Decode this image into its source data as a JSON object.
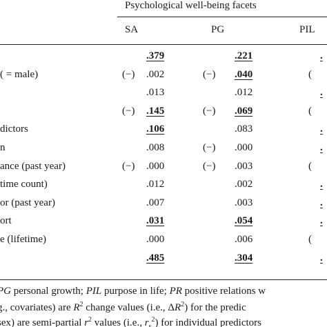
{
  "table": {
    "group_header": "Psychological well-being facets",
    "columns": [
      "SA",
      "PG",
      "PIL"
    ],
    "rows": [
      {
        "label": "",
        "sa": {
          "sign": "",
          "val": ".379",
          "bold": true
        },
        "pg": {
          "sign": "",
          "val": ".221",
          "bold": true
        },
        "pil": {
          "sign": "",
          "val": ".",
          "bold": true
        }
      },
      {
        "label": "(     = male)",
        "sa": {
          "sign": "(−)",
          "val": ".002",
          "bold": false
        },
        "pg": {
          "sign": "(−)",
          "val": ".040",
          "bold": true
        },
        "pil": {
          "sign": "(",
          "val": "",
          "bold": false
        }
      },
      {
        "label": "",
        "sa": {
          "sign": "",
          "val": ".013",
          "bold": false
        },
        "pg": {
          "sign": "",
          "val": ".012",
          "bold": false
        },
        "pil": {
          "sign": "",
          "val": ".",
          "bold": true
        }
      },
      {
        "label": "",
        "sa": {
          "sign": "(−)",
          "val": ".145",
          "bold": true
        },
        "pg": {
          "sign": "(−)",
          "val": ".069",
          "bold": true
        },
        "pil": {
          "sign": "(",
          "val": "",
          "bold": false
        }
      },
      {
        "label": "dictors",
        "sa": {
          "sign": "",
          "val": ".106",
          "bold": true
        },
        "pg": {
          "sign": "",
          "val": ".083",
          "bold": false
        },
        "pil": {
          "sign": "",
          "val": ".",
          "bold": true
        }
      },
      {
        "label": "n",
        "sa": {
          "sign": "",
          "val": ".008",
          "bold": false
        },
        "pg": {
          "sign": "(−)",
          "val": ".000",
          "bold": false
        },
        "pil": {
          "sign": "",
          "val": ".",
          "bold": true
        }
      },
      {
        "label": "ance (past year)",
        "sa": {
          "sign": "(−)",
          "val": ".000",
          "bold": false
        },
        "pg": {
          "sign": "(−)",
          "val": ".003",
          "bold": false
        },
        "pil": {
          "sign": "(",
          "val": "",
          "bold": false
        }
      },
      {
        "label": "time count)",
        "sa": {
          "sign": "",
          "val": ".012",
          "bold": false
        },
        "pg": {
          "sign": "",
          "val": ".002",
          "bold": false
        },
        "pil": {
          "sign": "",
          "val": ".",
          "bold": true
        }
      },
      {
        "label": "or (past year)",
        "sa": {
          "sign": "",
          "val": ".007",
          "bold": false
        },
        "pg": {
          "sign": "",
          "val": ".003",
          "bold": false
        },
        "pil": {
          "sign": "",
          "val": ".",
          "bold": true
        }
      },
      {
        "label": "ort",
        "sa": {
          "sign": "",
          "val": ".031",
          "bold": true
        },
        "pg": {
          "sign": "",
          "val": ".054",
          "bold": true
        },
        "pil": {
          "sign": "",
          "val": ".",
          "bold": true
        }
      },
      {
        "label": "e (lifetime)",
        "sa": {
          "sign": "",
          "val": ".000",
          "bold": false
        },
        "pg": {
          "sign": "",
          "val": ".006",
          "bold": false
        },
        "pil": {
          "sign": "(",
          "val": "",
          "bold": false
        }
      },
      {
        "label": "",
        "sa": {
          "sign": "",
          "val": ".485",
          "bold": true
        },
        "pg": {
          "sign": "",
          "val": ".304",
          "bold": true
        },
        "pil": {
          "sign": "",
          "val": ".",
          "bold": true
        }
      }
    ]
  },
  "footnote": {
    "line1": "PG personal growth; PIL purpose in life; PR positive relations w",
    "line2": "g., covariates) are R² change values (i.e., ΔR²) for the predic",
    "line3": "sex) are semi-partial r² values (i.e., rₛ²) for individual predictors"
  }
}
